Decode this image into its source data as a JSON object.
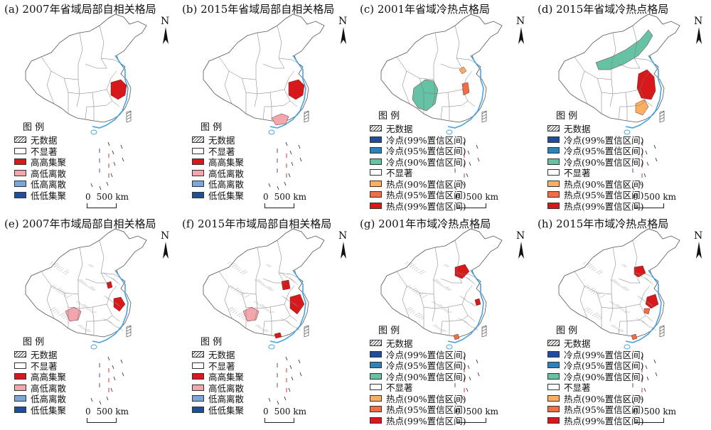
{
  "panels": [
    {
      "title": "(a) 2007年省域局部自相关格局",
      "type": "lisa",
      "scale": "province"
    },
    {
      "title": "(b) 2015年省域局部自相关格局",
      "type": "lisa",
      "scale": "province"
    },
    {
      "title": "(c) 2001年省域冷热点格局",
      "type": "hotspot",
      "scale": "province"
    },
    {
      "title": "(d) 2015年省域冷热点格局",
      "type": "hotspot",
      "scale": "province"
    },
    {
      "title": "(e) 2007年市域局部自相关格局",
      "type": "lisa",
      "scale": "city"
    },
    {
      "title": "(f) 2015年市域局部自相关格局",
      "type": "lisa",
      "scale": "city"
    },
    {
      "title": "(g) 2001年市域冷热点格局",
      "type": "hotspot",
      "scale": "city"
    },
    {
      "title": "(h) 2015年市域冷热点格局",
      "type": "hotspot",
      "scale": "city"
    }
  ],
  "north_label": "N",
  "scale_bar": {
    "zero": "0",
    "distance": "500 km"
  },
  "legend_title": "图 例",
  "lisa_legend": [
    {
      "label": "无数据",
      "color": "hatch"
    },
    {
      "label": "不显著",
      "color": "#ffffff"
    },
    {
      "label": "高高集聚",
      "color": "#d7191c"
    },
    {
      "label": "高低离散",
      "color": "#f4a6ad"
    },
    {
      "label": "低高离散",
      "color": "#7ba6d9"
    },
    {
      "label": "低低集聚",
      "color": "#1f4e9c"
    }
  ],
  "hotspot_legend": [
    {
      "label": "无数据",
      "color": "hatch"
    },
    {
      "label": "冷点(99%置信区间)",
      "color": "#1f4e9c"
    },
    {
      "label": "冷点(95%置信区间)",
      "color": "#2b83ba"
    },
    {
      "label": "冷点(90%置信区间)",
      "color": "#66c2a5"
    },
    {
      "label": "不显著",
      "color": "#ffffff"
    },
    {
      "label": "热点(90%置信区间)",
      "color": "#fdae61"
    },
    {
      "label": "热点(95%置信区间)",
      "color": "#f46d43"
    },
    {
      "label": "热点(99%置信区间)",
      "color": "#d7191c"
    }
  ],
  "colors": {
    "coast": "#4aa3df",
    "border": "#555555",
    "hh": "#d7191c",
    "hl": "#f4a6ad",
    "hot90": "#fdae61",
    "hot95": "#f46d43",
    "cold90": "#66c2a5"
  }
}
